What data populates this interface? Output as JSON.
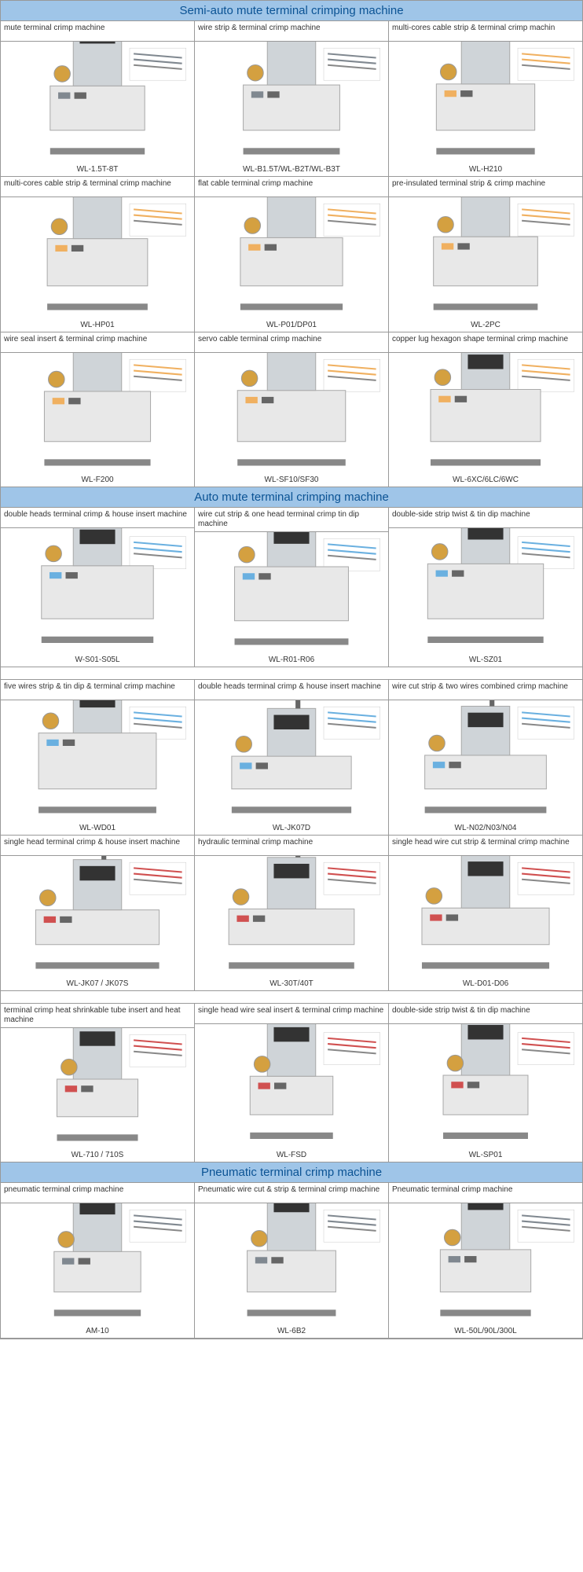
{
  "sections": [
    {
      "header": "Semi-auto mute terminal crimping machine",
      "rows": [
        [
          {
            "title": "mute terminal crimp machine",
            "model": "WL-1.5T-8T"
          },
          {
            "title": "wire strip & terminal crimp machine",
            "model": "WL-B1.5T/WL-B2T/WL-B3T"
          },
          {
            "title": "multi-cores cable strip & terminal crimp machin",
            "model": "WL-H210"
          }
        ],
        [
          {
            "title": "multi-cores cable strip & terminal crimp machine",
            "model": "WL-HP01"
          },
          {
            "title": "flat cable terminal crimp machine",
            "model": "WL-P01/DP01"
          },
          {
            "title": "pre-insulated terminal strip & crimp machine",
            "model": "WL-2PC"
          }
        ],
        [
          {
            "title": "wire seal insert & terminal crimp machine",
            "model": "WL-F200"
          },
          {
            "title": "servo cable terminal crimp machine",
            "model": "WL-SF10/SF30"
          },
          {
            "title": "copper lug hexagon shape terminal crimp machine",
            "model": "WL-6XC/6LC/6WC"
          }
        ]
      ]
    },
    {
      "header": "Auto mute terminal crimping machine",
      "rows": [
        [
          {
            "title": "double heads terminal crimp & house insert machine",
            "model": "W-S01-S05L"
          },
          {
            "title": "wire cut strip & one head terminal crimp tin dip machine",
            "model": "WL-R01-R06"
          },
          {
            "title": "double-side strip twist & tin dip machine",
            "model": "WL-SZ01"
          }
        ]
      ],
      "gap_after": true
    },
    {
      "header": null,
      "rows": [
        [
          {
            "title": "five wires strip & tin dip & terminal crimp machine",
            "model": "WL-WD01"
          },
          {
            "title": "double heads terminal crimp & house insert machine",
            "model": "WL-JK07D"
          },
          {
            "title": "wire cut strip & two wires combined crimp machine",
            "model": "WL-N02/N03/N04"
          }
        ],
        [
          {
            "title": "single head terminal crimp & house insert machine",
            "model": "WL-JK07 / JK07S"
          },
          {
            "title": "hydraulic terminal crimp machine",
            "model": "WL-30T/40T"
          },
          {
            "title": "single head wire cut strip & terminal crimp machine",
            "model": "WL-D01-D06"
          }
        ]
      ],
      "gap_after": true
    },
    {
      "header": null,
      "rows": [
        [
          {
            "title": "terminal crimp heat shrinkable tube insert and heat machine",
            "model": "WL-710 / 710S"
          },
          {
            "title": "single head wire seal insert & terminal crimp machine",
            "model": "WL-FSD"
          },
          {
            "title": "double-side strip twist & tin dip machine",
            "model": "WL-SP01"
          }
        ]
      ]
    },
    {
      "header": "Pneumatic terminal crimp machine",
      "rows": [
        [
          {
            "title": "pneumatic terminal crimp machine",
            "model": "AM-10"
          },
          {
            "title": "Pneumatic wire cut & strip & terminal crimp machine",
            "model": "WL-6B2"
          },
          {
            "title": "Pneumatic terminal crimp machine",
            "model": "WL-50L/90L/300L"
          }
        ]
      ]
    }
  ],
  "colors": {
    "header_bg": "#9fc5e8",
    "header_text": "#0b5394",
    "border": "#999999"
  }
}
